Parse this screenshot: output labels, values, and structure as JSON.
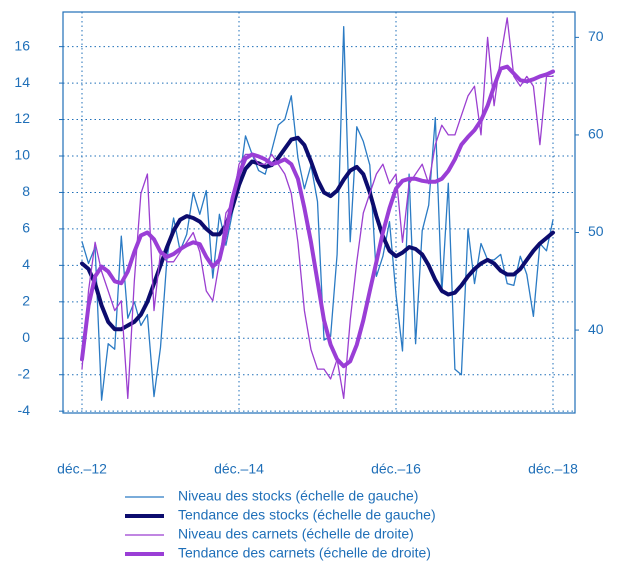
{
  "chart_data": {
    "type": "line",
    "categories": [
      "déc.–12",
      null,
      null,
      null,
      null,
      null,
      null,
      null,
      null,
      null,
      null,
      null,
      null,
      null,
      null,
      null,
      null,
      null,
      null,
      null,
      null,
      null,
      null,
      null,
      "déc.–14",
      null,
      null,
      null,
      null,
      null,
      null,
      null,
      null,
      null,
      null,
      null,
      null,
      null,
      null,
      null,
      null,
      null,
      null,
      null,
      null,
      null,
      null,
      null,
      "déc.–16",
      null,
      null,
      null,
      null,
      null,
      null,
      null,
      null,
      null,
      null,
      null,
      null,
      null,
      null,
      null,
      null,
      null,
      null,
      null,
      null,
      null,
      null,
      null,
      "déc.–18"
    ],
    "ylim": [
      -4.1,
      17.9
    ],
    "yticks": [
      -4,
      -2,
      0,
      2,
      4,
      6,
      8,
      10,
      12,
      14,
      16
    ],
    "y2lim": [
      31.5,
      72.6
    ],
    "y2ticks": [
      40,
      50,
      60,
      70
    ],
    "grid": true,
    "legend_position": "bottom",
    "series": [
      {
        "name": "Niveau des stocks (échelle de gauche)",
        "color": "#2b7bc4",
        "width": 1.3,
        "values": [
          5.3,
          4.1,
          5.0,
          -3.4,
          -0.3,
          -0.6,
          5.6,
          1.1,
          2.0,
          0.7,
          1.3,
          -3.2,
          -0.5,
          4.4,
          6.6,
          4.8,
          5.7,
          8.0,
          6.8,
          8.1,
          3.3,
          6.8,
          5.1,
          6.9,
          8.5,
          11.1,
          10.1,
          9.2,
          9.0,
          10.3,
          11.7,
          12.0,
          13.3,
          9.9,
          8.2,
          9.5,
          7.5,
          -0.1,
          0.1,
          4.6,
          17.1,
          5.3,
          11.6,
          10.8,
          9.5,
          3.4,
          4.5,
          6.4,
          2.4,
          -0.7,
          9.0,
          -0.3,
          5.9,
          7.3,
          12.1,
          2.5,
          8.5,
          -1.7,
          -2.0,
          6.0,
          3.0,
          5.2,
          4.3,
          4.3,
          4.6,
          3.0,
          2.9,
          4.5,
          3.5,
          1.2,
          5.2,
          4.8,
          6.5
        ]
      },
      {
        "name": "Tendance des stocks (échelle de gauche)",
        "color": "#0c0c6e",
        "width": 4,
        "values": [
          4.1,
          3.8,
          3.0,
          1.8,
          0.9,
          0.5,
          0.5,
          0.7,
          0.9,
          1.3,
          2.0,
          3.0,
          4.0,
          5.0,
          5.9,
          6.5,
          6.7,
          6.6,
          6.4,
          6.0,
          5.7,
          5.7,
          6.2,
          7.2,
          8.4,
          9.3,
          9.7,
          9.6,
          9.4,
          9.5,
          9.9,
          10.4,
          10.9,
          11.0,
          10.6,
          9.7,
          8.7,
          8.0,
          7.8,
          8.1,
          8.7,
          9.2,
          9.4,
          9.0,
          8.0,
          6.7,
          5.6,
          4.8,
          4.5,
          4.7,
          5.0,
          4.9,
          4.6,
          4.0,
          3.2,
          2.6,
          2.4,
          2.5,
          2.9,
          3.4,
          3.8,
          4.1,
          4.3,
          4.1,
          3.7,
          3.5,
          3.5,
          3.8,
          4.3,
          4.8,
          5.2,
          5.5,
          5.8
        ]
      },
      {
        "name": "Niveau des carnets (échelle de droite)",
        "color": "#9b3fd0",
        "width": 1.3,
        "axis": "y2",
        "values": [
          36,
          44,
          49,
          46,
          44,
          42,
          43,
          33,
          45,
          54,
          56,
          42,
          48,
          47,
          47,
          48,
          49,
          50,
          48,
          44,
          43,
          47,
          52,
          53,
          57,
          58,
          58,
          57,
          57,
          58,
          57,
          56,
          54,
          49,
          42,
          38,
          36,
          36,
          35,
          37,
          33,
          41,
          47,
          52,
          54,
          56,
          57,
          55,
          56,
          49,
          55,
          56,
          57,
          55,
          59,
          61,
          60,
          60,
          62,
          64,
          65,
          60,
          70,
          63,
          68,
          72,
          66,
          65,
          66,
          65,
          59,
          66,
          66
        ]
      },
      {
        "name": "Tendance des carnets (échelle de droite)",
        "color": "#9a3ed6",
        "width": 4,
        "axis": "y2",
        "values": [
          37.0,
          42.5,
          45.5,
          46.5,
          46.0,
          45.0,
          44.8,
          46.0,
          48.0,
          49.7,
          50.0,
          49.3,
          48.0,
          47.5,
          47.8,
          48.3,
          48.7,
          49.0,
          48.8,
          47.5,
          46.5,
          47.2,
          50.0,
          53.5,
          56.0,
          57.6,
          58.0,
          57.8,
          57.5,
          57.0,
          57.2,
          57.5,
          57.0,
          55.5,
          52.5,
          49.0,
          45.0,
          41.0,
          38.5,
          37.0,
          36.3,
          36.8,
          38.5,
          41.0,
          44.0,
          47.0,
          50.0,
          52.5,
          54.5,
          55.3,
          55.5,
          55.5,
          55.3,
          55.2,
          55.2,
          55.5,
          56.3,
          57.5,
          59.0,
          59.8,
          60.5,
          61.5,
          63.0,
          65.0,
          66.8,
          67.0,
          66.3,
          65.6,
          65.5,
          65.7,
          66.0,
          66.2,
          66.5
        ]
      }
    ]
  }
}
